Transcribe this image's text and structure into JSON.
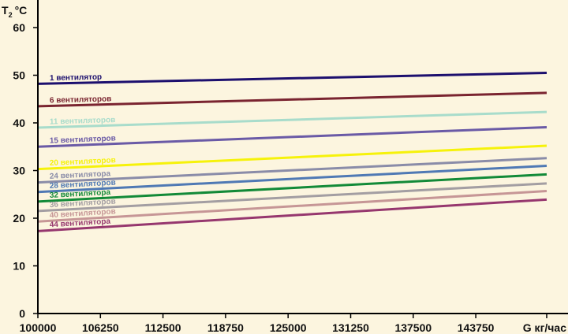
{
  "chart_data": {
    "type": "line",
    "title": "",
    "ylabel": "T",
    "ylabel_sub": "2",
    "ylabel_unit": "°C",
    "xlabel": "G кг/час",
    "xlim": [
      100000,
      150000
    ],
    "ylim": [
      0,
      65
    ],
    "x_ticks": [
      100000,
      106250,
      112500,
      118750,
      125000,
      131250,
      137500,
      143750
    ],
    "x_tick_labels": [
      "100000",
      "106250",
      "112500",
      "118750",
      "125000",
      "131250",
      "137500",
      "143750"
    ],
    "y_ticks": [
      0,
      10,
      20,
      30,
      40,
      50,
      60
    ],
    "y_tick_labels": [
      "0",
      "10",
      "20",
      "30",
      "40",
      "50",
      "60"
    ],
    "grid": false,
    "x": [
      100000,
      150000
    ],
    "series": [
      {
        "name": "1 вентилятор",
        "values": [
          48.2,
          50.5
        ],
        "color": "#1c0f6e"
      },
      {
        "name": "6 вентиляторов",
        "values": [
          43.5,
          46.3
        ],
        "color": "#7a2430"
      },
      {
        "name": "11 вентиляторов",
        "values": [
          39.0,
          42.3
        ],
        "color": "#a8dccb"
      },
      {
        "name": "15 вентиляторов",
        "values": [
          35.0,
          39.1
        ],
        "color": "#6a5aa6"
      },
      {
        "name": "20 вентиляторов",
        "values": [
          30.3,
          35.2
        ],
        "color": "#f6f20a"
      },
      {
        "name": "24 вентилятора",
        "values": [
          27.5,
          32.6
        ],
        "color": "#8a8ca8"
      },
      {
        "name": "28 вентиляторов",
        "values": [
          25.5,
          31.0
        ],
        "color": "#4f79b4"
      },
      {
        "name": "32 вентилятора",
        "values": [
          23.5,
          29.2
        ],
        "color": "#128a38"
      },
      {
        "name": "36 вентиляторов",
        "values": [
          21.5,
          27.3
        ],
        "color": "#a39ea2"
      },
      {
        "name": "40 вентиляторов",
        "values": [
          19.3,
          25.7
        ],
        "color": "#c69696"
      },
      {
        "name": "44 вентилятора",
        "values": [
          17.3,
          23.9
        ],
        "color": "#96376e"
      }
    ]
  }
}
